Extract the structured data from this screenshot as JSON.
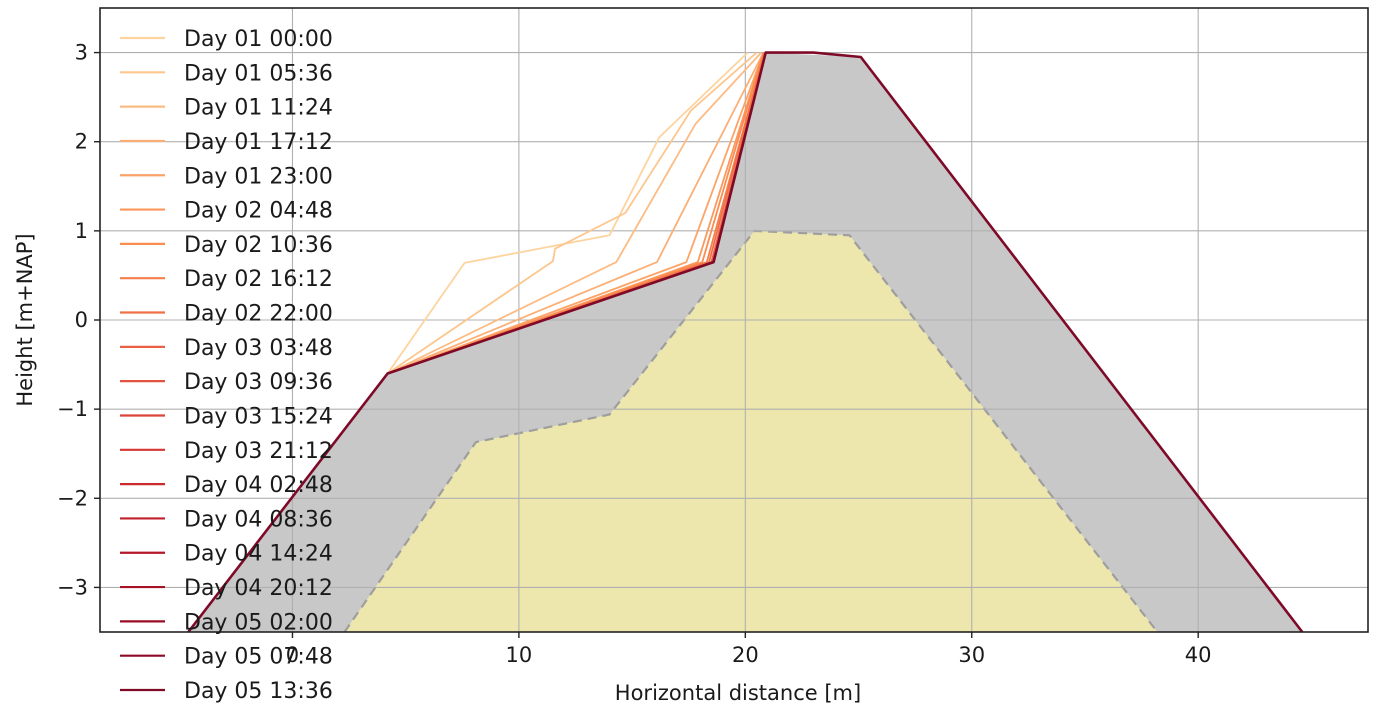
{
  "chart_data": {
    "type": "line",
    "title": "",
    "xlabel": "Horizontal distance [m]",
    "ylabel": "Height [m+NAP]",
    "xlim": [
      -8.5,
      47.5
    ],
    "ylim": [
      -3.5,
      3.5
    ],
    "xticks": [
      0,
      10,
      20,
      30,
      40
    ],
    "xtick_labels": [
      "0",
      "10",
      "20",
      "30",
      "40"
    ],
    "yticks": [
      -3,
      -2,
      -1,
      0,
      1,
      2,
      3
    ],
    "ytick_labels": [
      "−3",
      "−2",
      "−1",
      "0",
      "1",
      "2",
      "3"
    ],
    "grid": true,
    "legend_position": "top-left",
    "areas": [
      {
        "fill": "#c8c8c8",
        "stroke": "none",
        "x": [
          -4.6,
          4.2,
          18.6,
          20.9,
          25.1,
          44.6
        ],
        "y": [
          -3.5,
          -0.6,
          0.65,
          3.0,
          2.95,
          -3.5
        ]
      },
      {
        "fill": "#ede7ad",
        "stroke": "#9e9e9e",
        "dashed": true,
        "x": [
          2.3,
          8.1,
          14.0,
          20.4,
          24.6,
          38.2
        ],
        "y": [
          -3.5,
          -1.37,
          -1.06,
          1.0,
          0.95,
          -3.5
        ]
      }
    ],
    "series": [
      {
        "name": "Day 01 00:00",
        "color": "#fdd49e",
        "x": [
          4.2,
          7.6,
          14.0,
          16.2,
          20.1
        ],
        "y": [
          -0.6,
          0.64,
          0.95,
          2.05,
          3.0
        ]
      },
      {
        "name": "Day 01 05:36",
        "color": "#fdc68d",
        "x": [
          4.2,
          11.5,
          11.6,
          14.7,
          17.6,
          20.5
        ],
        "y": [
          -0.6,
          0.66,
          0.8,
          1.2,
          2.35,
          3.0
        ]
      },
      {
        "name": "Day 01 11:24",
        "color": "#fdbb84",
        "x": [
          4.2,
          14.3,
          17.8,
          20.7
        ],
        "y": [
          -0.6,
          0.65,
          2.2,
          3.0
        ]
      },
      {
        "name": "Day 01 17:12",
        "color": "#fcaf75",
        "x": [
          4.2,
          16.1,
          20.8
        ],
        "y": [
          -0.6,
          0.65,
          3.0
        ]
      },
      {
        "name": "Day 01 23:00",
        "color": "#fca468",
        "x": [
          4.2,
          17.4,
          20.8
        ],
        "y": [
          -0.6,
          0.65,
          3.0
        ]
      },
      {
        "name": "Day 02 04:48",
        "color": "#fc985b",
        "x": [
          4.2,
          17.9,
          20.8
        ],
        "y": [
          -0.6,
          0.65,
          3.0
        ]
      },
      {
        "name": "Day 02 10:36",
        "color": "#fb8c4f",
        "x": [
          4.2,
          18.1,
          20.8
        ],
        "y": [
          -0.6,
          0.65,
          3.0
        ]
      },
      {
        "name": "Day 02 16:12",
        "color": "#f67e4b",
        "x": [
          4.2,
          18.3,
          20.85
        ],
        "y": [
          -0.6,
          0.65,
          3.0
        ]
      },
      {
        "name": "Day 02 22:00",
        "color": "#f07048",
        "x": [
          4.2,
          18.4,
          20.85
        ],
        "y": [
          -0.6,
          0.65,
          3.0
        ]
      },
      {
        "name": "Day 03 03:48",
        "color": "#ea6145",
        "x": [
          4.2,
          18.5,
          20.9
        ],
        "y": [
          -0.6,
          0.65,
          3.0
        ]
      },
      {
        "name": "Day 03 09:36",
        "color": "#e45241",
        "x": [
          4.2,
          18.55,
          20.9
        ],
        "y": [
          -0.6,
          0.65,
          3.0
        ]
      },
      {
        "name": "Day 03 15:24",
        "color": "#de443b",
        "x": [
          4.2,
          18.6,
          20.9
        ],
        "y": [
          -0.6,
          0.65,
          3.0
        ]
      },
      {
        "name": "Day 03 21:12",
        "color": "#d53534",
        "x": [
          4.2,
          18.6,
          20.9
        ],
        "y": [
          -0.6,
          0.65,
          3.0
        ]
      },
      {
        "name": "Day 04 02:48",
        "color": "#cb2a2f",
        "x": [
          4.2,
          18.6,
          20.9
        ],
        "y": [
          -0.6,
          0.65,
          3.0
        ]
      },
      {
        "name": "Day 04 08:36",
        "color": "#c0202b",
        "x": [
          4.2,
          18.6,
          20.9
        ],
        "y": [
          -0.6,
          0.65,
          3.0
        ]
      },
      {
        "name": "Day 04 14:24",
        "color": "#b41828",
        "x": [
          4.2,
          18.6,
          20.9
        ],
        "y": [
          -0.6,
          0.65,
          3.0
        ]
      },
      {
        "name": "Day 04 20:12",
        "color": "#a81226",
        "x": [
          4.2,
          18.6,
          20.9
        ],
        "y": [
          -0.6,
          0.65,
          3.0
        ]
      },
      {
        "name": "Day 05 02:00",
        "color": "#9a0d25",
        "x": [
          4.2,
          18.6,
          20.9
        ],
        "y": [
          -0.6,
          0.65,
          3.0
        ]
      },
      {
        "name": "Day 05 07:48",
        "color": "#8c0a25",
        "x": [
          4.2,
          18.6,
          20.9
        ],
        "y": [
          -0.6,
          0.65,
          3.0
        ]
      },
      {
        "name": "Day 05 13:36",
        "color": "#7f0a27",
        "x": [
          -4.6,
          4.2,
          18.6,
          20.9,
          23.0,
          25.1,
          44.6
        ],
        "y": [
          -3.5,
          -0.6,
          0.65,
          3.0,
          3.0,
          2.95,
          -3.5
        ]
      }
    ]
  }
}
